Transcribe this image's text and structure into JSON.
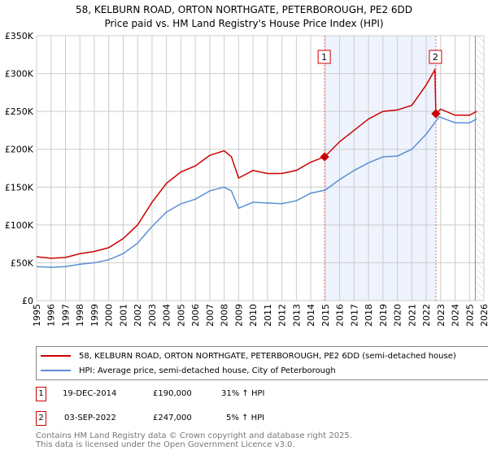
{
  "title": {
    "line1": "58, KELBURN ROAD, ORTON NORTHGATE, PETERBOROUGH, PE2 6DD",
    "line2": "Price paid vs. HM Land Registry's House Price Index (HPI)"
  },
  "colors": {
    "property": "#cc0000",
    "hpi": "#5b8fd6",
    "shade": "#eef3fd",
    "grid": "#cccccc"
  },
  "chart_data": {
    "type": "line",
    "xlim": [
      1995,
      2026
    ],
    "ylim": [
      0,
      350000
    ],
    "yticks": [
      {
        "v": 0,
        "label": "£0"
      },
      {
        "v": 50000,
        "label": "£50K"
      },
      {
        "v": 100000,
        "label": "£100K"
      },
      {
        "v": 150000,
        "label": "£150K"
      },
      {
        "v": 200000,
        "label": "£200K"
      },
      {
        "v": 250000,
        "label": "£250K"
      },
      {
        "v": 300000,
        "label": "£300K"
      },
      {
        "v": 350000,
        "label": "£350K"
      }
    ],
    "xticks": [
      "1995",
      "1996",
      "1997",
      "1998",
      "1999",
      "2000",
      "2001",
      "2002",
      "2003",
      "2004",
      "2005",
      "2006",
      "2007",
      "2008",
      "2009",
      "2010",
      "2011",
      "2012",
      "2013",
      "2014",
      "2015",
      "2016",
      "2017",
      "2018",
      "2019",
      "2020",
      "2021",
      "2022",
      "2023",
      "2024",
      "2025",
      "2026"
    ],
    "series": [
      {
        "name": "58, KELBURN ROAD, ORTON NORTHGATE, PETERBOROUGH, PE2 6DD (semi-detached house)",
        "x": [
          1995,
          1996,
          1997,
          1998,
          1999,
          2000,
          2001,
          2002,
          2003,
          2004,
          2005,
          2006,
          2007,
          2008,
          2008.5,
          2009,
          2010,
          2011,
          2012,
          2013,
          2014,
          2014.96,
          2016,
          2017,
          2018,
          2019,
          2020,
          2021,
          2022,
          2022.6,
          2022.67,
          2023,
          2024,
          2025,
          2025.5
        ],
        "y": [
          58000,
          56000,
          57000,
          62000,
          65000,
          70000,
          82000,
          100000,
          130000,
          155000,
          170000,
          178000,
          192000,
          198000,
          190000,
          162000,
          172000,
          168000,
          168000,
          172000,
          183000,
          190000,
          210000,
          225000,
          240000,
          250000,
          252000,
          258000,
          285000,
          305000,
          247000,
          253000,
          245000,
          245000,
          250000
        ]
      },
      {
        "name": "HPI: Average price, semi-detached house, City of Peterborough",
        "x": [
          1995,
          1996,
          1997,
          1998,
          1999,
          2000,
          2001,
          2002,
          2003,
          2004,
          2005,
          2006,
          2007,
          2008,
          2008.5,
          2009,
          2010,
          2011,
          2012,
          2013,
          2014,
          2015,
          2016,
          2017,
          2018,
          2019,
          2020,
          2021,
          2022,
          2022.9,
          2023.3,
          2024,
          2025,
          2025.5
        ],
        "y": [
          45000,
          44000,
          45000,
          48000,
          50000,
          54000,
          62000,
          76000,
          98000,
          117000,
          128000,
          134000,
          145000,
          150000,
          145000,
          122000,
          130000,
          129000,
          128000,
          132000,
          142000,
          146000,
          160000,
          172000,
          182000,
          190000,
          191000,
          200000,
          220000,
          243000,
          240000,
          235000,
          235000,
          240000
        ]
      }
    ],
    "sales": [
      {
        "label": "1",
        "x": 2014.96,
        "y": 190000
      },
      {
        "label": "2",
        "x": 2022.67,
        "y": 247000
      }
    ],
    "data_end": 2025.4
  },
  "legend": {
    "property": "58, KELBURN ROAD, ORTON NORTHGATE, PETERBOROUGH, PE2 6DD (semi-detached house)",
    "hpi": "HPI: Average price, semi-detached house, City of Peterborough"
  },
  "transactions": [
    {
      "num": "1",
      "date": "19-DEC-2014",
      "price": "£190,000",
      "hpi": "31% ↑ HPI"
    },
    {
      "num": "2",
      "date": "03-SEP-2022",
      "price": "£247,000",
      "hpi": "5% ↑ HPI"
    }
  ],
  "footer": {
    "line1": "Contains HM Land Registry data © Crown copyright and database right 2025.",
    "line2": "This data is licensed under the Open Government Licence v3.0."
  }
}
